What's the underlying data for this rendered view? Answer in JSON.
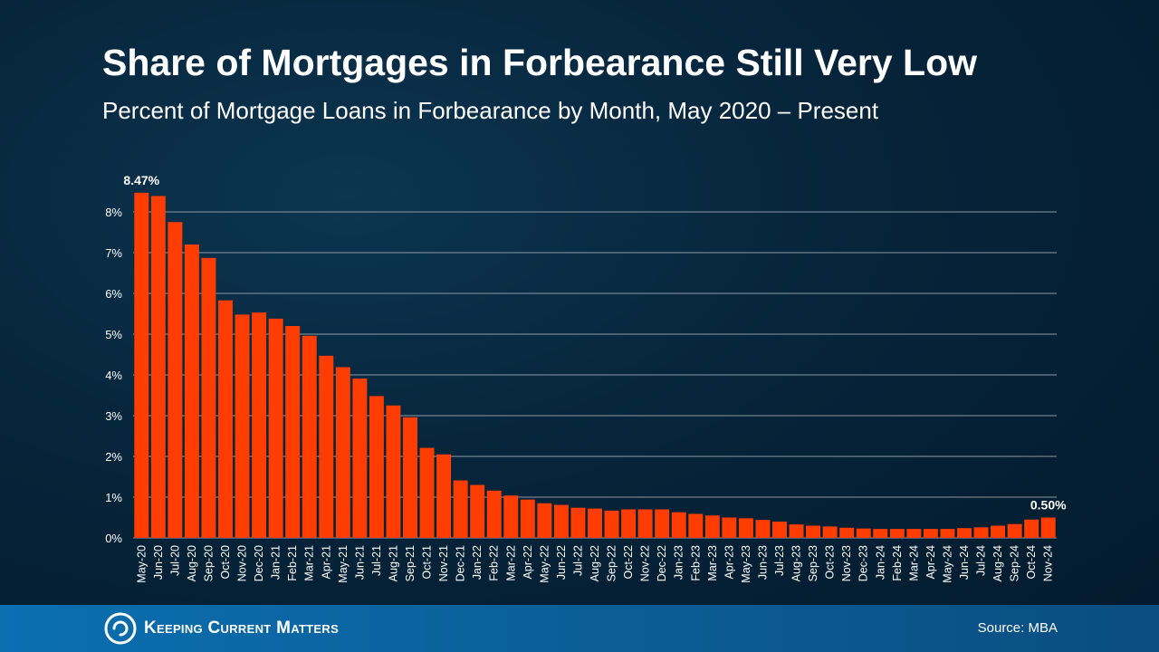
{
  "header": {
    "title": "Share of Mortgages in Forbearance Still Very Low",
    "subtitle": "Percent of Mortgage Loans in Forbearance by Month, May 2020 – Present"
  },
  "footer": {
    "brand": "Keeping Current Matters",
    "source": "Source: MBA"
  },
  "colors": {
    "bar": "#ff3d00",
    "grid": "#8b9aa6",
    "text": "#ffffff",
    "footer": "#0b66a6"
  },
  "chart_data": {
    "type": "bar",
    "categories": [
      "May-20",
      "Jun-20",
      "Jul-20",
      "Aug-20",
      "Sep-20",
      "Oct-20",
      "Nov-20",
      "Dec-20",
      "Jan-21",
      "Feb-21",
      "Mar-21",
      "Apr-21",
      "May-21",
      "Jun-21",
      "Jul-21",
      "Aug-21",
      "Sep-21",
      "Oct-21",
      "Nov-21",
      "Dec-21",
      "Jan-22",
      "Feb-22",
      "Mar-22",
      "Apr-22",
      "May-22",
      "Jun-22",
      "Jul-22",
      "Aug-22",
      "Sep-22",
      "Oct-22",
      "Nov-22",
      "Dec-22",
      "Jan-23",
      "Feb-23",
      "Mar-23",
      "Apr-23",
      "May-23",
      "Jun-23",
      "Jul-23",
      "Aug-23",
      "Sep-23",
      "Oct-23",
      "Nov-23",
      "Dec-23",
      "Jan-24",
      "Feb-24",
      "Mar-24",
      "Apr-24",
      "May-24",
      "Jun-24",
      "Jul-24",
      "Aug-24",
      "Sep-24",
      "Oct-24",
      "Nov-24"
    ],
    "values": [
      8.47,
      8.39,
      7.75,
      7.2,
      6.87,
      5.83,
      5.48,
      5.53,
      5.38,
      5.2,
      4.96,
      4.47,
      4.19,
      3.91,
      3.48,
      3.25,
      2.96,
      2.21,
      2.05,
      1.41,
      1.3,
      1.16,
      1.04,
      0.94,
      0.85,
      0.81,
      0.74,
      0.72,
      0.67,
      0.7,
      0.7,
      0.7,
      0.63,
      0.59,
      0.55,
      0.5,
      0.48,
      0.44,
      0.4,
      0.33,
      0.3,
      0.28,
      0.25,
      0.23,
      0.22,
      0.22,
      0.22,
      0.22,
      0.22,
      0.24,
      0.26,
      0.3,
      0.34,
      0.45,
      0.5
    ],
    "ylim": [
      0,
      9
    ],
    "yticks": [
      0,
      1,
      2,
      3,
      4,
      5,
      6,
      7,
      8
    ],
    "ytick_labels": [
      "0%",
      "1%",
      "2%",
      "3%",
      "4%",
      "5%",
      "6%",
      "7%",
      "8%"
    ],
    "data_labels": [
      {
        "index": 0,
        "text": "8.47%"
      },
      {
        "index": 54,
        "text": "0.50%"
      }
    ],
    "grid": true,
    "legend": "none",
    "xlabel": "",
    "ylabel": ""
  }
}
